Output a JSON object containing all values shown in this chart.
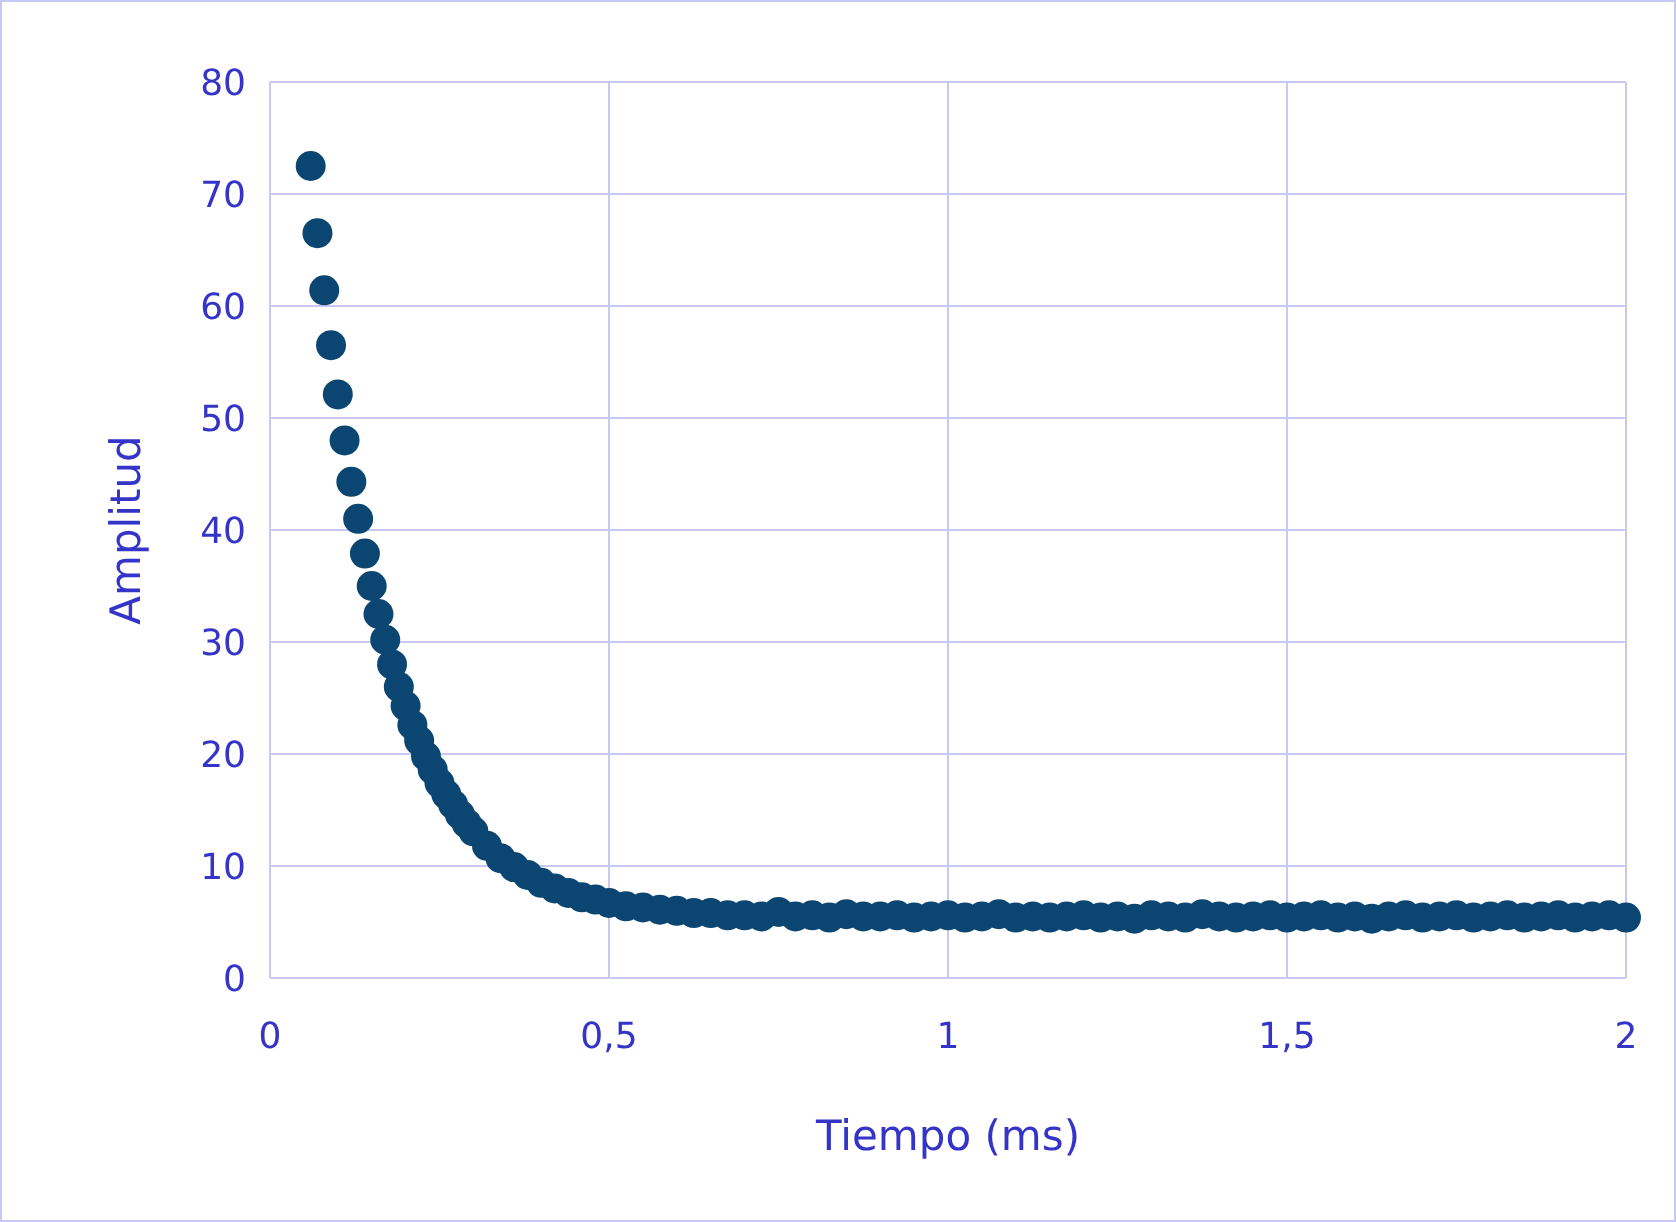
{
  "chart_data": {
    "type": "scatter",
    "xlabel": "Tiempo (ms)",
    "ylabel": "Amplitud",
    "xlim": [
      0,
      2
    ],
    "ylim": [
      0,
      80
    ],
    "xticks": [
      0,
      {
        "value": 0.5,
        "label": "0,5"
      },
      1,
      {
        "value": 1.5,
        "label": "1,5"
      },
      2
    ],
    "yticks": [
      0,
      10,
      20,
      30,
      40,
      50,
      60,
      70,
      80
    ],
    "grid": true,
    "marker": "circle",
    "series": [
      {
        "color": "#0b4672",
        "x": [
          0.06,
          0.07,
          0.08,
          0.09,
          0.1,
          0.11,
          0.12,
          0.13,
          0.14,
          0.15,
          0.16,
          0.17,
          0.18,
          0.19,
          0.2,
          0.21,
          0.22,
          0.23,
          0.24,
          0.25,
          0.26,
          0.27,
          0.28,
          0.29,
          0.3,
          0.32,
          0.34,
          0.36,
          0.38,
          0.4,
          0.42,
          0.44,
          0.46,
          0.48,
          0.5,
          0.525,
          0.55,
          0.575,
          0.6,
          0.625,
          0.65,
          0.675,
          0.7,
          0.725,
          0.75,
          0.775,
          0.8,
          0.825,
          0.85,
          0.875,
          0.9,
          0.925,
          0.95,
          0.975,
          1,
          1.025,
          1.05,
          1.075,
          1.1,
          1.125,
          1.15,
          1.175,
          1.2,
          1.225,
          1.25,
          1.275,
          1.3,
          1.325,
          1.35,
          1.375,
          1.4,
          1.425,
          1.45,
          1.475,
          1.5,
          1.525,
          1.55,
          1.575,
          1.6,
          1.625,
          1.65,
          1.675,
          1.7,
          1.725,
          1.75,
          1.775,
          1.8,
          1.825,
          1.85,
          1.875,
          1.9,
          1.925,
          1.95,
          1.975,
          2
        ],
        "values": [
          72.5,
          66.5,
          61.4,
          56.5,
          52.1,
          48,
          44.3,
          41,
          37.9,
          35,
          32.5,
          30.2,
          28,
          26,
          24.3,
          22.6,
          21.2,
          19.8,
          18.6,
          17.4,
          16.4,
          15.5,
          14.6,
          13.8,
          13.1,
          11.8,
          10.7,
          9.9,
          9.2,
          8.5,
          8,
          7.6,
          7.2,
          7,
          6.7,
          6.4,
          6.3,
          6.1,
          6,
          5.8,
          5.8,
          5.6,
          5.6,
          5.5,
          5.9,
          5.5,
          5.6,
          5.4,
          5.7,
          5.5,
          5.5,
          5.6,
          5.4,
          5.5,
          5.6,
          5.4,
          5.5,
          5.7,
          5.4,
          5.5,
          5.4,
          5.5,
          5.6,
          5.4,
          5.5,
          5.3,
          5.6,
          5.5,
          5.4,
          5.7,
          5.5,
          5.4,
          5.5,
          5.6,
          5.4,
          5.5,
          5.6,
          5.4,
          5.5,
          5.3,
          5.5,
          5.6,
          5.4,
          5.5,
          5.6,
          5.4,
          5.5,
          5.6,
          5.4,
          5.5,
          5.6,
          5.4,
          5.5,
          5.6,
          5.4
        ]
      }
    ]
  }
}
